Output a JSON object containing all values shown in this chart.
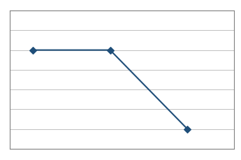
{
  "x": [
    0,
    1,
    2
  ],
  "y": [
    5,
    5,
    1
  ],
  "line_color": "#1F4E79",
  "marker_color": "#1F4E79",
  "marker_style": "D",
  "marker_size": 5,
  "line_width": 1.5,
  "xlim": [
    -0.3,
    2.6
  ],
  "ylim": [
    0,
    7
  ],
  "yticks": [
    1,
    2,
    3,
    4,
    5,
    6
  ],
  "grid_color": "#C0C0C0",
  "grid_linewidth": 0.7,
  "background_color": "#FFFFFF",
  "figure_background": "#FFFFFF",
  "outer_border_color": "#808080",
  "spine_color": "#808080"
}
